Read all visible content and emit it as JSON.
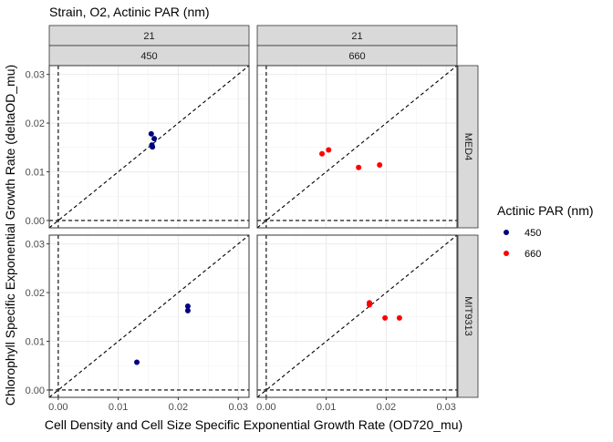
{
  "chart_data": {
    "type": "scatter",
    "title": "Strain, O2, Actinic PAR (nm)",
    "xlabel": "Cell Density and Cell Size Specific Exponential Growth Rate (OD720_mu)",
    "ylabel": "Chlorophyll Specific Exponential Growth Rate (deltaOD_mu)",
    "xlim": [
      -0.0015,
      0.0318
    ],
    "ylim": [
      -0.0015,
      0.0318
    ],
    "x_ticks": [
      0.0,
      0.01,
      0.02,
      0.03
    ],
    "x_tick_labels": [
      "0.00",
      "0.01",
      "0.02",
      "0.03"
    ],
    "y_ticks": [
      0.0,
      0.01,
      0.02,
      0.03
    ],
    "y_tick_labels": [
      "0.00",
      "0.01",
      "0.02",
      "0.03"
    ],
    "grid": true,
    "reference_lines": [
      "x = 0",
      "y = 0",
      "y = x"
    ],
    "legend": {
      "title": "Actinic PAR (nm)",
      "placement": "right",
      "entries": [
        {
          "label": "450",
          "color": "#000080"
        },
        {
          "label": "660",
          "color": "#ff0000"
        }
      ]
    },
    "column_strips": [
      {
        "o2": "21",
        "par": "450"
      },
      {
        "o2": "21",
        "par": "660"
      }
    ],
    "row_strips": [
      "MED4",
      "MIT9313"
    ],
    "panels": [
      {
        "strain": "MED4",
        "o2": "21",
        "par": "450",
        "color": "#000080",
        "points": [
          [
            0.0155,
            0.0178
          ],
          [
            0.016,
            0.0168
          ],
          [
            0.0156,
            0.0155
          ],
          [
            0.0157,
            0.0151
          ]
        ]
      },
      {
        "strain": "MED4",
        "o2": "21",
        "par": "660",
        "color": "#ff0000",
        "points": [
          [
            0.0093,
            0.0137
          ],
          [
            0.0104,
            0.0145
          ],
          [
            0.0154,
            0.0109
          ],
          [
            0.0189,
            0.0114
          ]
        ]
      },
      {
        "strain": "MIT9313",
        "o2": "21",
        "par": "450",
        "color": "#000080",
        "points": [
          [
            0.0131,
            0.0057
          ],
          [
            0.0216,
            0.0172
          ],
          [
            0.0216,
            0.0163
          ]
        ]
      },
      {
        "strain": "MIT9313",
        "o2": "21",
        "par": "660",
        "color": "#ff0000",
        "points": [
          [
            0.0172,
            0.0179
          ],
          [
            0.0172,
            0.0175
          ],
          [
            0.0198,
            0.0148
          ],
          [
            0.0222,
            0.0148
          ]
        ]
      }
    ]
  }
}
